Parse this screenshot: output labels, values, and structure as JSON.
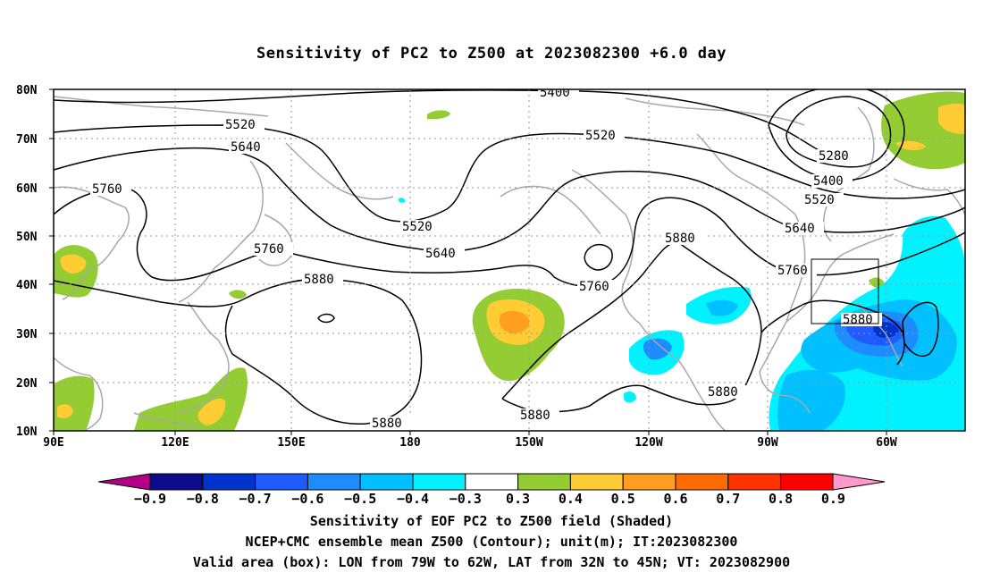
{
  "title": "Sensitivity of PC2 to Z500 at 2023082300 +6.0 day",
  "lat_labels": [
    "80N",
    "70N",
    "60N",
    "50N",
    "40N",
    "30N",
    "20N",
    "10N"
  ],
  "lon_labels": [
    "90E",
    "120E",
    "150E",
    "180",
    "150W",
    "120W",
    "90W",
    "60W"
  ],
  "contour_labels": {
    "c5400_top": "5400",
    "c5520_left": "5520",
    "c5640_left": "5640",
    "c5760_left": "5760",
    "c5520_mid": "5520",
    "c5760_mid": "5760",
    "c5880_w": "5880",
    "c5520_c": "5520",
    "c5640_c": "5640",
    "c5760_c": "5760",
    "c5880_e": "5880",
    "c5280_ne": "5280",
    "c5400_ne": "5400",
    "c5520_ne": "5520",
    "c5640_ne": "5640",
    "c5760_ne": "5760",
    "c5880_box": "5880",
    "c5880_s1": "5880",
    "c5880_s2": "5880",
    "c5880_s3": "5880"
  },
  "colorbar": {
    "labels": [
      "−0.9",
      "−0.8",
      "−0.7",
      "−0.6",
      "−0.5",
      "−0.4",
      "−0.3",
      "0.3",
      "0.4",
      "0.5",
      "0.6",
      "0.7",
      "0.8",
      "0.9"
    ],
    "colors": [
      "#0b0b8c",
      "#0033cc",
      "#1f5bff",
      "#1e8cff",
      "#00c0ff",
      "#00f2ff",
      "#ffffff",
      "#94cc33",
      "#ffcc33",
      "#ff9e1f",
      "#ff6b00",
      "#ff3300",
      "#ff0000"
    ],
    "low_end_color": "#b30086",
    "high_end_color": "#ff99cc"
  },
  "captions": {
    "line1": "Sensitivity of EOF PC2 to Z500 field (Shaded)",
    "line2": "NCEP+CMC ensemble mean Z500 (Contour); unit(m); IT:2023082300",
    "line3": "Valid area (box): LON from 79W to 62W, LAT from 32N to 45N; VT: 2023082900"
  }
}
